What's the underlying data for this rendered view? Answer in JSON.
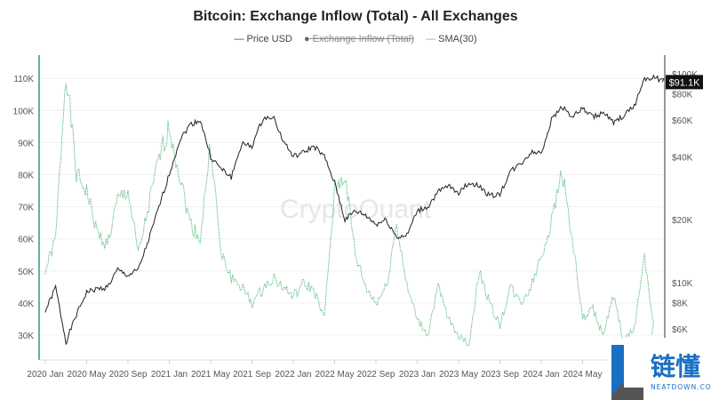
{
  "chart_data": {
    "type": "line",
    "title": "Bitcoin: Exchange Inflow (Total) - All Exchanges",
    "legend": [
      {
        "name": "Price USD",
        "color": "#222222",
        "visible": true
      },
      {
        "name": "Exchange Inflow (Total)",
        "color": "#666666",
        "visible": false
      },
      {
        "name": "SMA(30)",
        "color": "#6cc08e",
        "visible": true
      }
    ],
    "legend_placement": "top-center",
    "x_ticks": [
      "2020 Jan",
      "2020 May",
      "2020 Sep",
      "2021 Jan",
      "2021 May",
      "2021 Sep",
      "2022 Jan",
      "2022 May",
      "2022 Sep",
      "2023 Jan",
      "2023 May",
      "2023 Sep",
      "2024 Jan",
      "2024 May"
    ],
    "left_axis": {
      "ticks": [
        "30K",
        "40K",
        "50K",
        "60K",
        "70K",
        "80K",
        "90K",
        "100K",
        "110K"
      ],
      "values": [
        30000,
        40000,
        50000,
        60000,
        70000,
        80000,
        90000,
        100000,
        110000
      ],
      "scale": "linear",
      "color": "#2e9e6a"
    },
    "right_axis": {
      "ticks": [
        "$6K",
        "$8K",
        "$10K",
        "$20K",
        "$40K",
        "$60K",
        "$80K",
        "$100K"
      ],
      "values": [
        6000,
        8000,
        10000,
        20000,
        40000,
        60000,
        80000,
        100000
      ],
      "scale": "log"
    },
    "last_price_label": "$91.1K",
    "grid": true,
    "watermark": "CryptoQuant",
    "series": [
      {
        "name": "Price USD",
        "axis": "right",
        "points": [
          [
            "2020-01",
            7300
          ],
          [
            "2020-02",
            9500
          ],
          [
            "2020-03",
            5200
          ],
          [
            "2020-04",
            7000
          ],
          [
            "2020-05",
            9000
          ],
          [
            "2020-06",
            9300
          ],
          [
            "2020-07",
            9500
          ],
          [
            "2020-08",
            11500
          ],
          [
            "2020-09",
            10800
          ],
          [
            "2020-10",
            11500
          ],
          [
            "2020-11",
            16000
          ],
          [
            "2020-12",
            23000
          ],
          [
            "2021-01",
            33000
          ],
          [
            "2021-02",
            48000
          ],
          [
            "2021-03",
            57000
          ],
          [
            "2021-04",
            60000
          ],
          [
            "2021-05",
            40000
          ],
          [
            "2021-06",
            35000
          ],
          [
            "2021-07",
            32000
          ],
          [
            "2021-08",
            46000
          ],
          [
            "2021-09",
            45000
          ],
          [
            "2021-10",
            60000
          ],
          [
            "2021-11",
            63000
          ],
          [
            "2021-12",
            48000
          ],
          [
            "2022-01",
            40000
          ],
          [
            "2022-02",
            42000
          ],
          [
            "2022-03",
            45000
          ],
          [
            "2022-04",
            40000
          ],
          [
            "2022-05",
            30000
          ],
          [
            "2022-06",
            20000
          ],
          [
            "2022-07",
            22000
          ],
          [
            "2022-08",
            21000
          ],
          [
            "2022-09",
            19000
          ],
          [
            "2022-10",
            20000
          ],
          [
            "2022-11",
            16500
          ],
          [
            "2022-12",
            16800
          ],
          [
            "2023-01",
            22000
          ],
          [
            "2023-02",
            23000
          ],
          [
            "2023-03",
            27000
          ],
          [
            "2023-04",
            29000
          ],
          [
            "2023-05",
            27000
          ],
          [
            "2023-06",
            30000
          ],
          [
            "2023-07",
            29000
          ],
          [
            "2023-08",
            26000
          ],
          [
            "2023-09",
            26500
          ],
          [
            "2023-10",
            34000
          ],
          [
            "2023-11",
            37000
          ],
          [
            "2023-12",
            42000
          ],
          [
            "2024-01",
            42000
          ],
          [
            "2024-02",
            60000
          ],
          [
            "2024-03",
            70000
          ],
          [
            "2024-04",
            62000
          ],
          [
            "2024-05",
            68000
          ],
          [
            "2024-06",
            62000
          ],
          [
            "2024-07",
            65000
          ],
          [
            "2024-08",
            58000
          ],
          [
            "2024-09",
            63000
          ],
          [
            "2024-10",
            70000
          ],
          [
            "2024-11",
            95000
          ],
          [
            "2024-12",
            96000
          ],
          [
            "2025-01",
            91100
          ]
        ]
      },
      {
        "name": "SMA(30)",
        "axis": "left",
        "points": [
          [
            "2020-01",
            50000
          ],
          [
            "2020-02",
            60000
          ],
          [
            "2020-03",
            113000
          ],
          [
            "2020-04",
            80000
          ],
          [
            "2020-05",
            75000
          ],
          [
            "2020-06",
            62000
          ],
          [
            "2020-07",
            58000
          ],
          [
            "2020-08",
            72000
          ],
          [
            "2020-09",
            75000
          ],
          [
            "2020-10",
            55000
          ],
          [
            "2020-11",
            70000
          ],
          [
            "2020-12",
            85000
          ],
          [
            "2021-01",
            95000
          ],
          [
            "2021-02",
            80000
          ],
          [
            "2021-03",
            65000
          ],
          [
            "2021-04",
            60000
          ],
          [
            "2021-05",
            90000
          ],
          [
            "2021-06",
            55000
          ],
          [
            "2021-07",
            48000
          ],
          [
            "2021-08",
            45000
          ],
          [
            "2021-09",
            40000
          ],
          [
            "2021-10",
            44000
          ],
          [
            "2021-11",
            48000
          ],
          [
            "2021-12",
            45000
          ],
          [
            "2022-01",
            42000
          ],
          [
            "2022-02",
            46000
          ],
          [
            "2022-03",
            44000
          ],
          [
            "2022-04",
            35000
          ],
          [
            "2022-05",
            75000
          ],
          [
            "2022-06",
            80000
          ],
          [
            "2022-07",
            55000
          ],
          [
            "2022-08",
            45000
          ],
          [
            "2022-09",
            40000
          ],
          [
            "2022-10",
            45000
          ],
          [
            "2022-11",
            65000
          ],
          [
            "2022-12",
            45000
          ],
          [
            "2023-01",
            35000
          ],
          [
            "2023-02",
            30000
          ],
          [
            "2023-03",
            45000
          ],
          [
            "2023-04",
            35000
          ],
          [
            "2023-05",
            30000
          ],
          [
            "2023-06",
            27000
          ],
          [
            "2023-07",
            50000
          ],
          [
            "2023-08",
            40000
          ],
          [
            "2023-09",
            33000
          ],
          [
            "2023-10",
            45000
          ],
          [
            "2023-11",
            40000
          ],
          [
            "2023-12",
            45000
          ],
          [
            "2024-01",
            55000
          ],
          [
            "2024-02",
            65000
          ],
          [
            "2024-03",
            82000
          ],
          [
            "2024-04",
            60000
          ],
          [
            "2024-05",
            35000
          ],
          [
            "2024-06",
            38000
          ],
          [
            "2024-07",
            30000
          ],
          [
            "2024-08",
            42000
          ],
          [
            "2024-09",
            28000
          ],
          [
            "2024-10",
            32000
          ],
          [
            "2024-11",
            55000
          ],
          [
            "2024-12",
            30000
          ]
        ]
      }
    ]
  },
  "logo": {
    "text": "链懂",
    "subtext": "NEATDOWN.COM",
    "color": "#1a6fc4"
  }
}
